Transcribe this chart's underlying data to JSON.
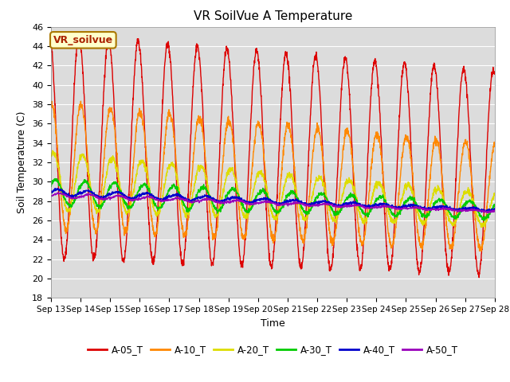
{
  "title": "VR SoilVue A Temperature",
  "ylabel": "Soil Temperature (C)",
  "xlabel": "Time",
  "ylim": [
    18,
    46
  ],
  "yticks": [
    18,
    20,
    22,
    24,
    26,
    28,
    30,
    32,
    34,
    36,
    38,
    40,
    42,
    44,
    46
  ],
  "bg_color": "#dcdcdc",
  "fig_bg": "#ffffff",
  "annotation_label": "VR_soilvue",
  "annotation_bg": "#ffffcc",
  "annotation_border": "#aa7700",
  "series": [
    {
      "name": "A-05_T",
      "color": "#dd0000"
    },
    {
      "name": "A-10_T",
      "color": "#ff8800"
    },
    {
      "name": "A-20_T",
      "color": "#dddd00"
    },
    {
      "name": "A-30_T",
      "color": "#00cc00"
    },
    {
      "name": "A-40_T",
      "color": "#0000cc"
    },
    {
      "name": "A-50_T",
      "color": "#9900bb"
    }
  ],
  "xtick_labels": [
    "Sep 13",
    "Sep 14",
    "Sep 15",
    "Sep 16",
    "Sep 17",
    "Sep 18",
    "Sep 19",
    "Sep 20",
    "Sep 21",
    "Sep 22",
    "Sep 23",
    "Sep 24",
    "Sep 25",
    "Sep 26",
    "Sep 27",
    "Sep 28"
  ],
  "n_days": 15,
  "samples_per_day": 144
}
